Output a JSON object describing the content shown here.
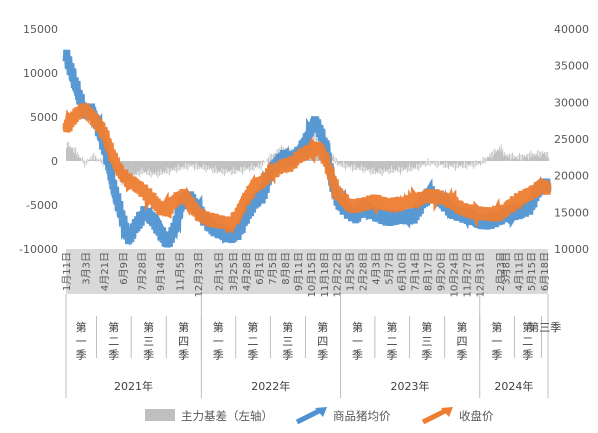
{
  "chart_data": {
    "type": "combo",
    "title": "",
    "legend_position": "bottom",
    "y_left": {
      "min": -10000,
      "max": 15000,
      "ticks": [
        15000,
        10000,
        5000,
        0,
        -5000,
        -10000
      ]
    },
    "y_right": {
      "min": 10000,
      "max": 40000,
      "ticks": [
        40000,
        35000,
        30000,
        25000,
        20000,
        15000,
        10000
      ]
    },
    "series": [
      {
        "name": "主力基差（左轴）",
        "type": "bar",
        "axis": "left",
        "color": "#bfbfbf"
      },
      {
        "name": "商品猪均价",
        "type": "line",
        "axis": "right",
        "color": "#4f92d1"
      },
      {
        "name": "收盘价",
        "type": "line",
        "axis": "right",
        "color": "#ed7d31"
      }
    ],
    "x_start": "2021-01-11",
    "x_end": "2024-06-28",
    "date_ticks": [
      {
        "date": "2021-01-11",
        "label": "1月11日"
      },
      {
        "date": "2021-03-03",
        "label": "3月3日"
      },
      {
        "date": "2021-04-21",
        "label": "4月21日"
      },
      {
        "date": "2021-06-09",
        "label": "6月9日"
      },
      {
        "date": "2021-07-28",
        "label": "7月28日"
      },
      {
        "date": "2021-09-14",
        "label": "9月14日"
      },
      {
        "date": "2021-11-05",
        "label": "11月5日"
      },
      {
        "date": "2021-12-23",
        "label": "12月23日"
      },
      {
        "date": "2022-02-15",
        "label": "2月15日"
      },
      {
        "date": "2022-03-25",
        "label": "3月25日"
      },
      {
        "date": "2022-04-28",
        "label": "4月28日"
      },
      {
        "date": "2022-06-01",
        "label": "6月1日"
      },
      {
        "date": "2022-07-05",
        "label": "7月5日"
      },
      {
        "date": "2022-08-08",
        "label": "8月8日"
      },
      {
        "date": "2022-09-11",
        "label": "9月11日"
      },
      {
        "date": "2022-10-15",
        "label": "10月15日"
      },
      {
        "date": "2022-11-18",
        "label": "11月18日"
      },
      {
        "date": "2022-12-22",
        "label": "12月22日"
      },
      {
        "date": "2023-01-25",
        "label": "1月25日"
      },
      {
        "date": "2023-02-28",
        "label": "2月28日"
      },
      {
        "date": "2023-04-03",
        "label": "4月3日"
      },
      {
        "date": "2023-05-07",
        "label": "5月7日"
      },
      {
        "date": "2023-06-10",
        "label": "6月10日"
      },
      {
        "date": "2023-07-14",
        "label": "7月14日"
      },
      {
        "date": "2023-08-17",
        "label": "8月17日"
      },
      {
        "date": "2023-09-20",
        "label": "9月20日"
      },
      {
        "date": "2023-10-24",
        "label": "10月24日"
      },
      {
        "date": "2023-11-27",
        "label": "11月27日"
      },
      {
        "date": "2023-12-31",
        "label": "12月31日"
      },
      {
        "date": "2024-02-23",
        "label": "2月23日"
      },
      {
        "date": "2024-03-08",
        "label": "3月8日"
      },
      {
        "date": "2024-04-11",
        "label": "4月11日"
      },
      {
        "date": "2024-05-15",
        "label": "5月15日"
      },
      {
        "date": "2024-06-18",
        "label": "6月18日"
      }
    ],
    "quarters": [
      {
        "label": "第一季",
        "start": "2021-01-11",
        "end": "2021-03-31"
      },
      {
        "label": "第二季",
        "start": "2021-04-01",
        "end": "2021-06-30"
      },
      {
        "label": "第三季",
        "start": "2021-07-01",
        "end": "2021-09-30"
      },
      {
        "label": "第四季",
        "start": "2021-10-01",
        "end": "2021-12-31"
      },
      {
        "label": "第一季",
        "start": "2022-01-01",
        "end": "2022-03-31"
      },
      {
        "label": "第二季",
        "start": "2022-04-01",
        "end": "2022-06-30"
      },
      {
        "label": "第三季",
        "start": "2022-07-01",
        "end": "2022-09-30"
      },
      {
        "label": "第四季",
        "start": "2022-10-01",
        "end": "2022-12-31"
      },
      {
        "label": "第一季",
        "start": "2023-01-01",
        "end": "2023-03-31"
      },
      {
        "label": "第二季",
        "start": "2023-04-01",
        "end": "2023-06-30"
      },
      {
        "label": "第三季",
        "start": "2023-07-01",
        "end": "2023-09-30"
      },
      {
        "label": "第四季",
        "start": "2023-10-01",
        "end": "2023-12-31"
      },
      {
        "label": "第一季",
        "start": "2024-01-01",
        "end": "2024-03-31"
      },
      {
        "label": "第二季",
        "start": "2024-04-01",
        "end": "2024-06-10"
      },
      {
        "label": "第三季",
        "start": "2024-06-11",
        "end": "2024-06-28"
      }
    ],
    "years": [
      {
        "label": "2021年",
        "start": "2021-01-11",
        "end": "2021-12-31"
      },
      {
        "label": "2022年",
        "start": "2022-01-01",
        "end": "2022-12-31"
      },
      {
        "label": "2023年",
        "start": "2023-01-01",
        "end": "2023-12-31"
      },
      {
        "label": "2024年",
        "start": "2024-01-01",
        "end": "2024-06-28"
      }
    ],
    "price_avg_keypoints": [
      [
        "2021-01-11",
        36500
      ],
      [
        "2021-02-01",
        33000
      ],
      [
        "2021-03-01",
        28500
      ],
      [
        "2021-03-20",
        29000
      ],
      [
        "2021-04-10",
        26000
      ],
      [
        "2021-05-01",
        22000
      ],
      [
        "2021-05-20",
        17500
      ],
      [
        "2021-06-09",
        14000
      ],
      [
        "2021-06-25",
        11500
      ],
      [
        "2021-07-15",
        13500
      ],
      [
        "2021-08-05",
        14800
      ],
      [
        "2021-08-25",
        14000
      ],
      [
        "2021-09-14",
        12500
      ],
      [
        "2021-10-05",
        11000
      ],
      [
        "2021-10-20",
        12500
      ],
      [
        "2021-11-10",
        16000
      ],
      [
        "2021-12-01",
        17000
      ],
      [
        "2021-12-23",
        15500
      ],
      [
        "2022-01-15",
        13800
      ],
      [
        "2022-02-05",
        12600
      ],
      [
        "2022-02-25",
        12100
      ],
      [
        "2022-03-20",
        11800
      ],
      [
        "2022-04-10",
        12500
      ],
      [
        "2022-04-28",
        14500
      ],
      [
        "2022-05-20",
        16200
      ],
      [
        "2022-06-10",
        17200
      ],
      [
        "2022-07-05",
        21000
      ],
      [
        "2022-08-01",
        22500
      ],
      [
        "2022-08-25",
        22000
      ],
      [
        "2022-09-15",
        23000
      ],
      [
        "2022-10-05",
        25000
      ],
      [
        "2022-10-25",
        27500
      ],
      [
        "2022-11-05",
        26500
      ],
      [
        "2022-11-25",
        23500
      ],
      [
        "2022-12-10",
        19000
      ],
      [
        "2022-12-25",
        16500
      ],
      [
        "2023-01-15",
        15500
      ],
      [
        "2023-02-10",
        14500
      ],
      [
        "2023-03-05",
        15500
      ],
      [
        "2023-04-03",
        14800
      ],
      [
        "2023-05-07",
        14300
      ],
      [
        "2023-06-01",
        14200
      ],
      [
        "2023-06-25",
        14300
      ],
      [
        "2023-07-14",
        14600
      ],
      [
        "2023-08-10",
        17000
      ],
      [
        "2023-08-25",
        17500
      ],
      [
        "2023-09-20",
        16500
      ],
      [
        "2023-10-24",
        15200
      ],
      [
        "2023-11-27",
        14500
      ],
      [
        "2023-12-31",
        13600
      ],
      [
        "2024-01-20",
        13800
      ],
      [
        "2024-02-23",
        14300
      ],
      [
        "2024-03-08",
        14600
      ],
      [
        "2024-04-11",
        15000
      ],
      [
        "2024-05-15",
        16000
      ],
      [
        "2024-06-01",
        18000
      ],
      [
        "2024-06-18",
        18700
      ],
      [
        "2024-06-28",
        18300
      ]
    ],
    "close_price_keypoints": [
      [
        "2021-01-11",
        26500
      ],
      [
        "2021-02-01",
        28000
      ],
      [
        "2021-03-01",
        29000
      ],
      [
        "2021-04-01",
        27500
      ],
      [
        "2021-04-21",
        26000
      ],
      [
        "2021-05-10",
        23000
      ],
      [
        "2021-06-01",
        20500
      ],
      [
        "2021-06-20",
        19500
      ],
      [
        "2021-07-10",
        19000
      ],
      [
        "2021-07-28",
        18200
      ],
      [
        "2021-08-20",
        17000
      ],
      [
        "2021-09-14",
        15500
      ],
      [
        "2021-10-05",
        15500
      ],
      [
        "2021-10-25",
        16800
      ],
      [
        "2021-11-15",
        17200
      ],
      [
        "2021-12-05",
        16000
      ],
      [
        "2021-12-23",
        14800
      ],
      [
        "2022-01-15",
        14300
      ],
      [
        "2022-02-15",
        13700
      ],
      [
        "2022-03-15",
        13200
      ],
      [
        "2022-04-05",
        14500
      ],
      [
        "2022-04-28",
        17000
      ],
      [
        "2022-05-20",
        18500
      ],
      [
        "2022-06-10",
        19000
      ],
      [
        "2022-07-05",
        20500
      ],
      [
        "2022-08-01",
        21500
      ],
      [
        "2022-08-25",
        21500
      ],
      [
        "2022-09-15",
        22500
      ],
      [
        "2022-10-15",
        23500
      ],
      [
        "2022-11-05",
        24000
      ],
      [
        "2022-11-25",
        22000
      ],
      [
        "2022-12-10",
        19500
      ],
      [
        "2022-12-25",
        17500
      ],
      [
        "2023-01-25",
        16000
      ],
      [
        "2023-02-28",
        16000
      ],
      [
        "2023-04-03",
        16400
      ],
      [
        "2023-05-07",
        16200
      ],
      [
        "2023-06-10",
        16000
      ],
      [
        "2023-07-14",
        16600
      ],
      [
        "2023-08-17",
        17400
      ],
      [
        "2023-09-20",
        16900
      ],
      [
        "2023-10-24",
        16300
      ],
      [
        "2023-11-27",
        15300
      ],
      [
        "2023-12-31",
        14700
      ],
      [
        "2024-02-23",
        14900
      ],
      [
        "2024-03-08",
        15300
      ],
      [
        "2024-04-11",
        16600
      ],
      [
        "2024-05-15",
        17800
      ],
      [
        "2024-06-01",
        18300
      ],
      [
        "2024-06-18",
        18600
      ],
      [
        "2024-06-28",
        18000
      ]
    ],
    "basis_keypoints": [
      [
        "2021-01-11",
        2000
      ],
      [
        "2021-02-01",
        1200
      ],
      [
        "2021-03-01",
        -300
      ],
      [
        "2021-03-20",
        500
      ],
      [
        "2021-04-21",
        -200
      ],
      [
        "2021-05-10",
        -800
      ],
      [
        "2021-06-09",
        -2500
      ],
      [
        "2021-07-01",
        -1800
      ],
      [
        "2021-07-28",
        -1200
      ],
      [
        "2021-09-01",
        -1500
      ],
      [
        "2021-10-01",
        -1200
      ],
      [
        "2021-11-05",
        -800
      ],
      [
        "2021-12-01",
        -500
      ],
      [
        "2021-12-23",
        -700
      ],
      [
        "2022-01-15",
        -800
      ],
      [
        "2022-02-15",
        -1200
      ],
      [
        "2022-03-25",
        -1200
      ],
      [
        "2022-04-28",
        -900
      ],
      [
        "2022-06-01",
        -600
      ],
      [
        "2022-07-05",
        600
      ],
      [
        "2022-08-01",
        1500
      ],
      [
        "2022-09-11",
        800
      ],
      [
        "2022-10-05",
        2200
      ],
      [
        "2022-10-25",
        2500
      ],
      [
        "2022-11-18",
        2000
      ],
      [
        "2022-12-10",
        600
      ],
      [
        "2022-12-22",
        -300
      ],
      [
        "2023-01-25",
        -700
      ],
      [
        "2023-03-01",
        -900
      ],
      [
        "2023-04-03",
        -1300
      ],
      [
        "2023-05-07",
        -1100
      ],
      [
        "2023-06-10",
        -1000
      ],
      [
        "2023-07-14",
        -800
      ],
      [
        "2023-08-17",
        -200
      ],
      [
        "2023-09-20",
        -400
      ],
      [
        "2023-10-24",
        -600
      ],
      [
        "2023-11-27",
        -500
      ],
      [
        "2023-12-31",
        -300
      ],
      [
        "2024-02-23",
        1500
      ],
      [
        "2024-03-08",
        600
      ],
      [
        "2024-04-11",
        400
      ],
      [
        "2024-05-15",
        700
      ],
      [
        "2024-06-18",
        900
      ],
      [
        "2024-06-28",
        700
      ]
    ]
  }
}
